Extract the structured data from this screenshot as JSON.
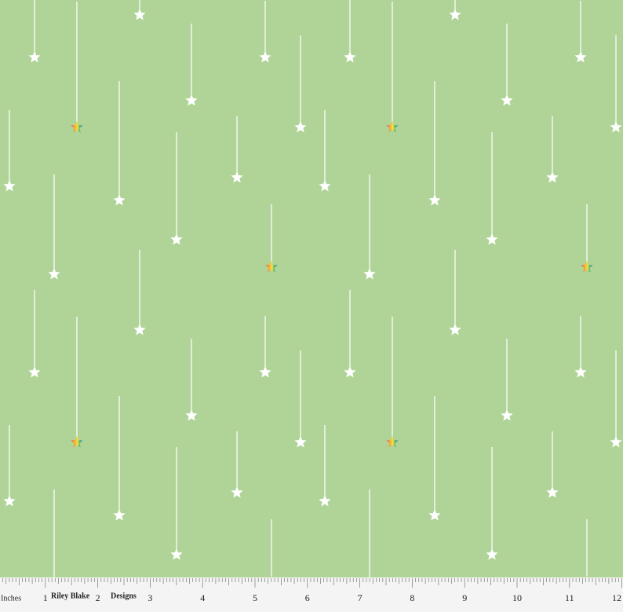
{
  "ruler": {
    "unit_label": "Inches",
    "brand": "Riley Blake",
    "brand_suffix": "Designs",
    "numbers": [
      "1",
      "2",
      "3",
      "4",
      "5",
      "6",
      "7",
      "8",
      "9",
      "10",
      "11",
      "12"
    ]
  }
}
